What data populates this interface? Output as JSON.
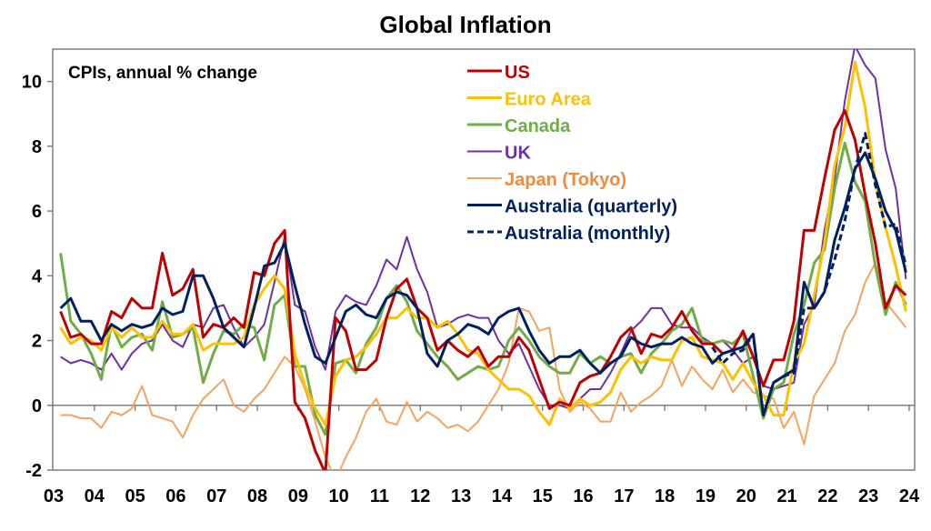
{
  "chart_data": {
    "type": "line",
    "title": "Global Inflation",
    "subtitle": "CPIs, annual % change",
    "xlabel": "",
    "ylabel": "",
    "ylim": [
      -2,
      11
    ],
    "xlim": [
      2003,
      2024
    ],
    "grid": false,
    "zero_line": true,
    "legend_position": "top-center",
    "y_ticks": [
      "-2",
      "0",
      "2",
      "4",
      "6",
      "8",
      "10"
    ],
    "y_tick_values": [
      -2,
      0,
      2,
      4,
      6,
      8,
      10
    ],
    "x_ticks": [
      "03",
      "04",
      "05",
      "06",
      "07",
      "08",
      "09",
      "10",
      "11",
      "12",
      "13",
      "14",
      "15",
      "16",
      "17",
      "18",
      "19",
      "20",
      "21",
      "22",
      "23",
      "24"
    ],
    "x_tick_values": [
      2003,
      2004,
      2005,
      2006,
      2007,
      2008,
      2009,
      2010,
      2011,
      2012,
      2013,
      2014,
      2015,
      2016,
      2017,
      2018,
      2019,
      2020,
      2021,
      2022,
      2023,
      2024
    ],
    "frequency": "quarterly",
    "start": "2003 Q1",
    "series": [
      {
        "name": "US",
        "color": "#C00000",
        "dash": false,
        "values": [
          2.9,
          2.1,
          2.2,
          1.9,
          1.9,
          2.9,
          2.7,
          3.3,
          3.0,
          3.0,
          4.7,
          3.4,
          3.6,
          4.2,
          2.1,
          2.5,
          2.4,
          2.7,
          2.4,
          4.1,
          4.0,
          5.0,
          5.4,
          0.1,
          -0.4,
          -1.4,
          -2.1,
          2.7,
          2.3,
          1.1,
          1.1,
          1.4,
          2.7,
          3.6,
          3.9,
          3.0,
          2.7,
          1.7,
          2.0,
          1.7,
          1.5,
          1.8,
          1.2,
          1.5,
          1.5,
          2.1,
          1.7,
          0.8,
          -0.1,
          0.1,
          0.0,
          0.7,
          0.9,
          1.0,
          1.5,
          2.1,
          2.4,
          1.6,
          2.2,
          2.1,
          2.4,
          2.9,
          2.3,
          1.9,
          1.9,
          1.6,
          1.7,
          2.3,
          1.5,
          0.6,
          1.4,
          1.4,
          2.6,
          5.4,
          5.4,
          7.0,
          8.5,
          9.1,
          8.2,
          6.5,
          5.0,
          3.0,
          3.7,
          3.4
        ]
      },
      {
        "name": "Euro Area",
        "color": "#FFC000",
        "dash": false,
        "values": [
          2.4,
          1.9,
          2.1,
          2.0,
          1.7,
          2.4,
          2.1,
          2.4,
          2.1,
          2.1,
          2.6,
          2.2,
          2.2,
          2.5,
          1.7,
          1.9,
          1.9,
          1.9,
          2.1,
          3.1,
          3.6,
          4.0,
          3.6,
          1.6,
          0.6,
          -0.1,
          -0.6,
          0.9,
          1.4,
          1.5,
          1.8,
          2.2,
          2.7,
          2.7,
          3.0,
          2.7,
          2.7,
          2.4,
          2.6,
          2.2,
          1.7,
          1.6,
          1.1,
          0.8,
          0.5,
          0.5,
          0.3,
          -0.2,
          -0.6,
          0.2,
          -0.1,
          0.2,
          0.0,
          0.1,
          0.4,
          1.1,
          1.5,
          1.3,
          1.5,
          1.4,
          1.4,
          2.0,
          2.1,
          1.5,
          1.4,
          1.3,
          0.8,
          1.3,
          0.7,
          0.3,
          -0.3,
          -0.3,
          1.3,
          1.9,
          3.4,
          5.0,
          7.4,
          8.6,
          10.6,
          9.2,
          6.9,
          5.5,
          4.3,
          2.9
        ]
      },
      {
        "name": "Canada",
        "color": "#70AD47",
        "dash": false,
        "values": [
          4.7,
          2.6,
          2.2,
          1.6,
          0.8,
          2.5,
          1.8,
          2.1,
          2.2,
          1.7,
          3.2,
          2.1,
          2.2,
          2.4,
          0.7,
          1.6,
          2.3,
          2.2,
          2.5,
          2.4,
          1.4,
          3.1,
          3.4,
          1.2,
          1.2,
          -0.3,
          -0.9,
          1.3,
          1.4,
          1.0,
          1.9,
          2.4,
          3.3,
          3.7,
          3.2,
          2.3,
          1.9,
          1.5,
          1.2,
          0.8,
          1.0,
          1.2,
          1.1,
          1.2,
          2.0,
          2.4,
          2.0,
          1.5,
          1.2,
          1.0,
          1.0,
          1.6,
          1.3,
          1.5,
          1.3,
          1.5,
          1.6,
          1.0,
          1.6,
          1.9,
          2.3,
          2.5,
          3.0,
          2.0,
          1.9,
          2.0,
          1.9,
          2.2,
          0.9,
          -0.4,
          0.5,
          0.7,
          2.2,
          3.1,
          4.4,
          4.8,
          6.7,
          8.1,
          6.9,
          6.3,
          4.3,
          2.8,
          3.8,
          3.1
        ]
      },
      {
        "name": "UK",
        "color": "#7030A0",
        "dash": false,
        "values": [
          1.5,
          1.3,
          1.4,
          1.3,
          1.1,
          1.6,
          1.1,
          1.6,
          1.9,
          2.0,
          2.5,
          2.0,
          1.8,
          2.5,
          2.4,
          3.0,
          3.1,
          2.4,
          1.8,
          2.1,
          2.5,
          3.8,
          5.2,
          3.1,
          2.9,
          1.8,
          1.1,
          2.9,
          3.4,
          3.2,
          3.1,
          3.7,
          4.5,
          4.2,
          5.2,
          4.2,
          3.5,
          2.4,
          2.5,
          2.7,
          2.8,
          2.7,
          2.7,
          2.0,
          1.6,
          1.9,
          1.2,
          0.5,
          0.0,
          0.0,
          -0.1,
          0.2,
          0.5,
          0.5,
          1.0,
          1.6,
          2.3,
          2.6,
          3.0,
          3.0,
          2.5,
          2.4,
          2.4,
          2.1,
          1.9,
          2.0,
          1.7,
          1.3,
          1.5,
          0.6,
          0.5,
          0.6,
          0.7,
          2.5,
          3.1,
          5.4,
          7.0,
          9.4,
          11.1,
          10.5,
          10.1,
          7.9,
          6.7,
          3.9
        ]
      },
      {
        "name": "Japan (Tokyo)",
        "color": "#F4A460",
        "dash": false,
        "values": [
          -0.3,
          -0.3,
          -0.4,
          -0.4,
          -0.7,
          -0.2,
          -0.3,
          -0.1,
          0.6,
          -0.3,
          -0.4,
          -0.5,
          -1.0,
          -0.3,
          0.2,
          0.5,
          0.8,
          0.0,
          -0.2,
          0.2,
          0.5,
          1.0,
          1.5,
          1.2,
          0.5,
          -0.5,
          -1.6,
          -2.3,
          -1.6,
          -1.0,
          -0.2,
          0.2,
          -0.5,
          -0.6,
          0.1,
          -0.5,
          -0.2,
          -0.4,
          -0.7,
          -0.6,
          -0.8,
          -0.5,
          0.0,
          0.5,
          1.3,
          3.0,
          2.9,
          2.3,
          2.4,
          0.5,
          -0.2,
          0.1,
          -0.1,
          -0.5,
          -0.5,
          0.4,
          -0.2,
          0.1,
          0.3,
          0.6,
          1.4,
          0.6,
          1.2,
          0.8,
          0.5,
          1.1,
          0.4,
          0.8,
          0.4,
          0.3,
          0.2,
          -0.7,
          -0.2,
          -1.2,
          0.3,
          0.8,
          1.3,
          2.3,
          2.8,
          3.8,
          4.4,
          3.2,
          2.8,
          2.4
        ]
      },
      {
        "name": "Australia (quarterly)",
        "color": "#002060",
        "dash": false,
        "values": [
          3.0,
          3.3,
          2.6,
          2.6,
          2.0,
          2.5,
          2.3,
          2.5,
          2.4,
          2.5,
          3.0,
          2.8,
          2.9,
          4.0,
          4.0,
          3.3,
          2.4,
          2.1,
          1.8,
          3.0,
          4.3,
          4.4,
          5.0,
          3.7,
          2.5,
          1.5,
          1.3,
          2.1,
          2.9,
          3.1,
          2.8,
          2.7,
          3.3,
          3.5,
          3.4,
          3.0,
          1.6,
          1.2,
          2.0,
          2.2,
          2.5,
          2.4,
          2.2,
          2.7,
          2.9,
          3.0,
          2.3,
          1.7,
          1.3,
          1.5,
          1.5,
          1.7,
          1.3,
          1.0,
          1.3,
          1.5,
          2.1,
          1.9,
          1.8,
          1.9,
          1.9,
          2.1,
          1.9,
          1.8,
          1.3,
          1.6,
          1.7,
          1.8,
          2.2,
          -0.3,
          0.7,
          0.9,
          1.1,
          3.8,
          3.0,
          3.5,
          5.1,
          6.1,
          7.3,
          7.8,
          7.0,
          6.0,
          5.4,
          4.1
        ]
      },
      {
        "name": "Australia (monthly)",
        "color": "#002060",
        "dash": true,
        "start": "2019 Q1",
        "values": [
          1.8,
          1.3,
          1.6,
          1.7,
          2.2,
          -0.3,
          0.7,
          0.9,
          1.0,
          3.0,
          3.0,
          3.5,
          4.5,
          5.7,
          7.3,
          8.4,
          6.8,
          5.5,
          5.6,
          4.3
        ]
      }
    ]
  }
}
